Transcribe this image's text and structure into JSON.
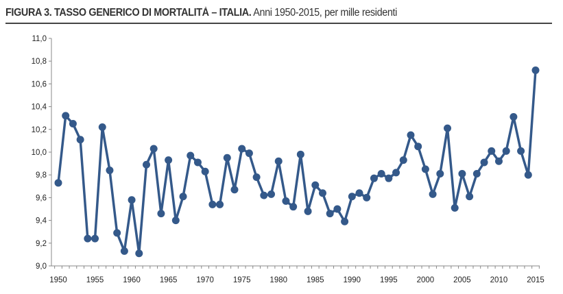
{
  "title_bold": "FIGURA 3. TASSO GENERICO DI MORTALITÀ – ITALIA.",
  "title_rest": " Anni 1950-2015, per mille residenti",
  "chart_data": {
    "type": "line",
    "title": "FIGURA 3. TASSO GENERICO DI MORTALITÀ – ITALIA. Anni 1950-2015, per mille residenti",
    "xlabel": "",
    "ylabel": "",
    "xlim": [
      1950,
      2015
    ],
    "ylim": [
      9.0,
      11.0
    ],
    "yticks": [
      "9,0",
      "9,2",
      "9,4",
      "9,6",
      "9,8",
      "10,0",
      "10,2",
      "10,4",
      "10,6",
      "10,8",
      "11,0"
    ],
    "xticks": [
      "1950",
      "1955",
      "1960",
      "1965",
      "1970",
      "1975",
      "1980",
      "1985",
      "1990",
      "1995",
      "2000",
      "2005",
      "2010",
      "2015"
    ],
    "grid": false,
    "color": "#34598A",
    "series": [
      {
        "name": "Tasso generico di mortalità",
        "x": [
          1950,
          1951,
          1952,
          1953,
          1954,
          1955,
          1956,
          1957,
          1958,
          1959,
          1960,
          1961,
          1962,
          1963,
          1964,
          1965,
          1966,
          1967,
          1968,
          1969,
          1970,
          1971,
          1972,
          1973,
          1974,
          1975,
          1976,
          1977,
          1978,
          1979,
          1980,
          1981,
          1982,
          1983,
          1984,
          1985,
          1986,
          1987,
          1988,
          1989,
          1990,
          1991,
          1992,
          1993,
          1994,
          1995,
          1996,
          1997,
          1998,
          1999,
          2000,
          2001,
          2002,
          2003,
          2004,
          2005,
          2006,
          2007,
          2008,
          2009,
          2010,
          2011,
          2012,
          2013,
          2014,
          2015
        ],
        "values": [
          9.73,
          10.32,
          10.25,
          10.11,
          9.24,
          9.24,
          10.22,
          9.84,
          9.29,
          9.13,
          9.58,
          9.11,
          9.89,
          10.03,
          9.46,
          9.93,
          9.4,
          9.61,
          9.97,
          9.91,
          9.83,
          9.54,
          9.54,
          9.95,
          9.67,
          10.03,
          9.99,
          9.78,
          9.62,
          9.63,
          9.92,
          9.57,
          9.52,
          9.98,
          9.48,
          9.71,
          9.64,
          9.46,
          9.5,
          9.39,
          9.61,
          9.64,
          9.6,
          9.77,
          9.81,
          9.77,
          9.82,
          9.93,
          10.15,
          10.05,
          9.85,
          9.63,
          9.81,
          10.21,
          9.51,
          9.81,
          9.61,
          9.81,
          9.91,
          10.01,
          9.92,
          10.01,
          10.31,
          10.01,
          9.8,
          10.72
        ]
      }
    ]
  }
}
